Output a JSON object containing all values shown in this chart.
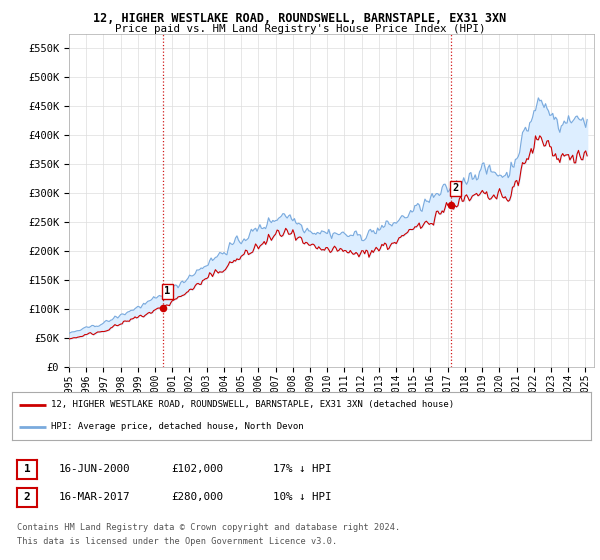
{
  "title1": "12, HIGHER WESTLAKE ROAD, ROUNDSWELL, BARNSTAPLE, EX31 3XN",
  "title2": "Price paid vs. HM Land Registry's House Price Index (HPI)",
  "ylabel_ticks": [
    "£0",
    "£50K",
    "£100K",
    "£150K",
    "£200K",
    "£250K",
    "£300K",
    "£350K",
    "£400K",
    "£450K",
    "£500K",
    "£550K"
  ],
  "ytick_vals": [
    0,
    50000,
    100000,
    150000,
    200000,
    250000,
    300000,
    350000,
    400000,
    450000,
    500000,
    550000
  ],
  "ylim": [
    0,
    575000
  ],
  "xlim_start": 1995.0,
  "xlim_end": 2025.5,
  "sale1_x": 2000.46,
  "sale1_y": 102000,
  "sale1_label": "1",
  "sale2_x": 2017.21,
  "sale2_y": 280000,
  "sale2_label": "2",
  "red_line_color": "#cc0000",
  "blue_line_color": "#7aaadd",
  "fill_color": "#ddeeff",
  "sale_dot_color": "#cc0000",
  "vline_color": "#cc0000",
  "legend_red_label": "12, HIGHER WESTLAKE ROAD, ROUNDSWELL, BARNSTAPLE, EX31 3XN (detached house)",
  "legend_blue_label": "HPI: Average price, detached house, North Devon",
  "table_row1": [
    "1",
    "16-JUN-2000",
    "£102,000",
    "17% ↓ HPI"
  ],
  "table_row2": [
    "2",
    "16-MAR-2017",
    "£280,000",
    "10% ↓ HPI"
  ],
  "footnote1": "Contains HM Land Registry data © Crown copyright and database right 2024.",
  "footnote2": "This data is licensed under the Open Government Licence v3.0.",
  "bg_color": "#ffffff",
  "plot_bg_color": "#ffffff",
  "grid_color": "#dddddd",
  "xtick_years": [
    1995,
    1996,
    1997,
    1998,
    1999,
    2000,
    2001,
    2002,
    2003,
    2004,
    2005,
    2006,
    2007,
    2008,
    2009,
    2010,
    2011,
    2012,
    2013,
    2014,
    2015,
    2016,
    2017,
    2018,
    2019,
    2020,
    2021,
    2022,
    2023,
    2024,
    2025
  ]
}
